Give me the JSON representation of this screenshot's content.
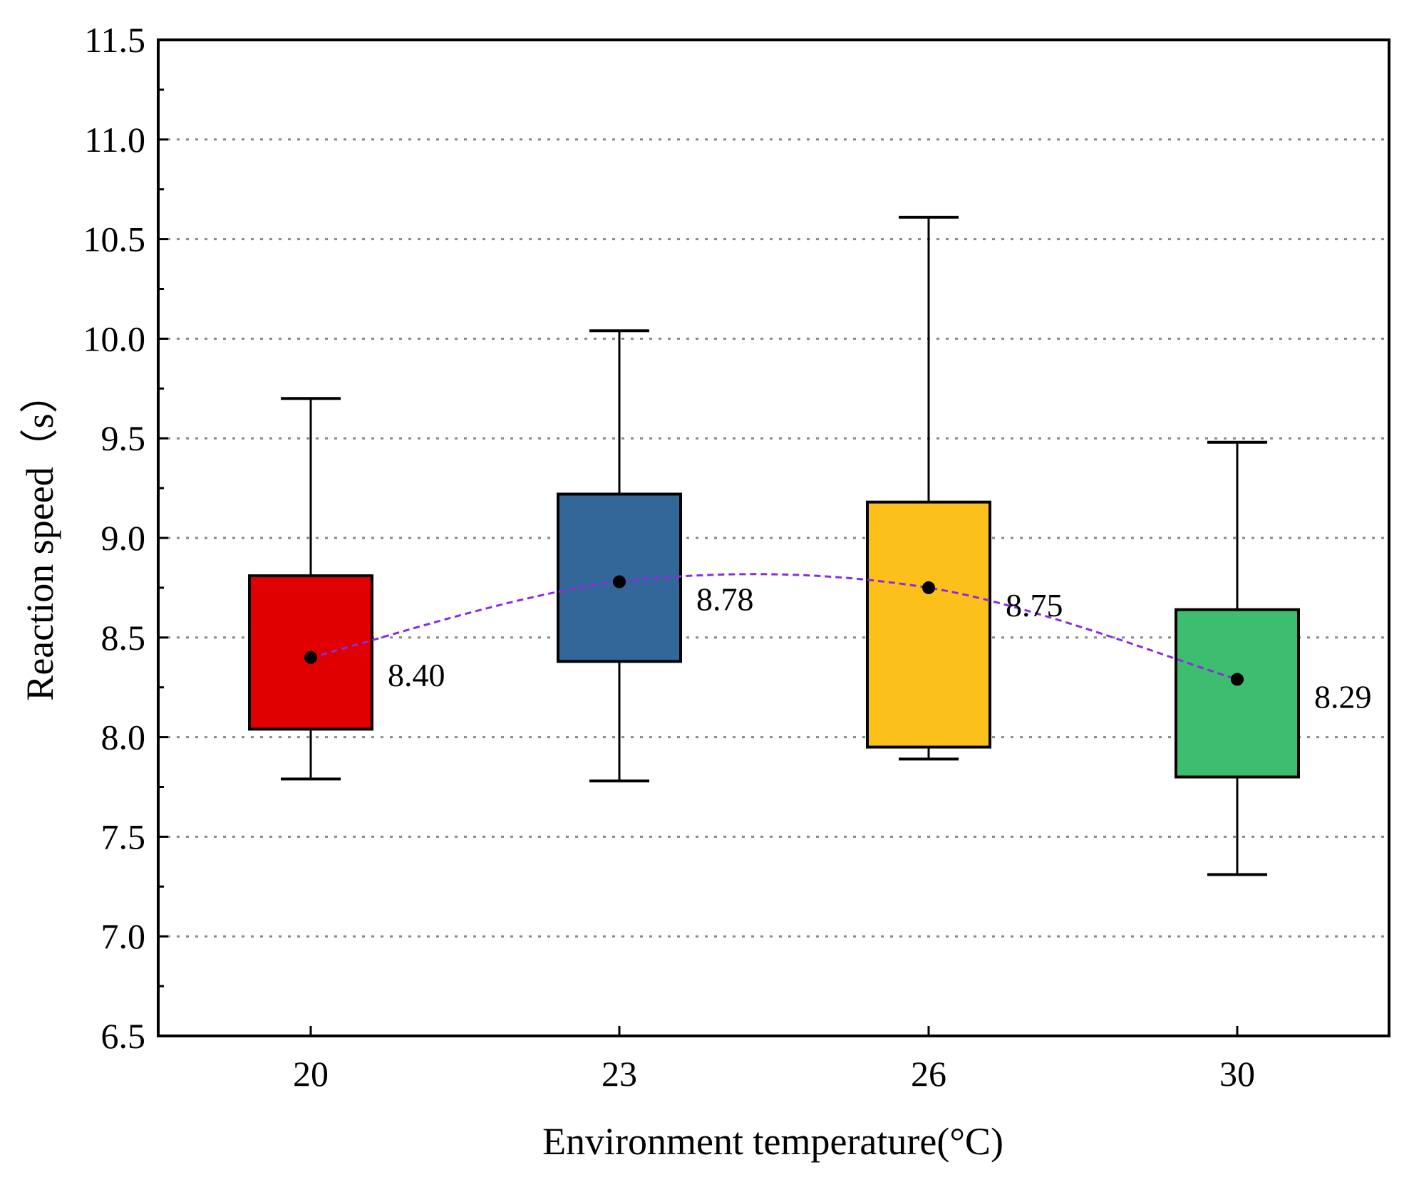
{
  "chart_data": {
    "type": "box",
    "xlabel": "Environment temperature(°C)",
    "ylabel": "Reaction speed（s）",
    "ylim": [
      6.5,
      11.5
    ],
    "yticks": [
      "6.5",
      "7.0",
      "7.5",
      "8.0",
      "8.5",
      "9.0",
      "9.5",
      "10.0",
      "10.5",
      "11.0",
      "11.5"
    ],
    "grid": "horizontal dotted",
    "categories": [
      "20",
      "23",
      "26",
      "30"
    ],
    "boxes": [
      {
        "category": "20",
        "whisker_low": 7.79,
        "q1": 8.04,
        "q3": 8.81,
        "whisker_high": 9.7,
        "mean": 8.4,
        "mean_label": "8.40",
        "color": "#e00000"
      },
      {
        "category": "23",
        "whisker_low": 7.78,
        "q1": 8.38,
        "q3": 9.22,
        "whisker_high": 10.04,
        "mean": 8.78,
        "mean_label": "8.78",
        "color": "#336699"
      },
      {
        "category": "26",
        "whisker_low": 7.89,
        "q1": 7.95,
        "q3": 9.18,
        "whisker_high": 10.61,
        "mean": 8.75,
        "mean_label": "8.75",
        "color": "#fcc01b"
      },
      {
        "category": "30",
        "whisker_low": 7.31,
        "q1": 7.8,
        "q3": 8.64,
        "whisker_high": 9.48,
        "mean": 8.29,
        "mean_label": "8.29",
        "color": "#3dbe6e"
      }
    ],
    "mean_line_color": "#8a2be2"
  }
}
